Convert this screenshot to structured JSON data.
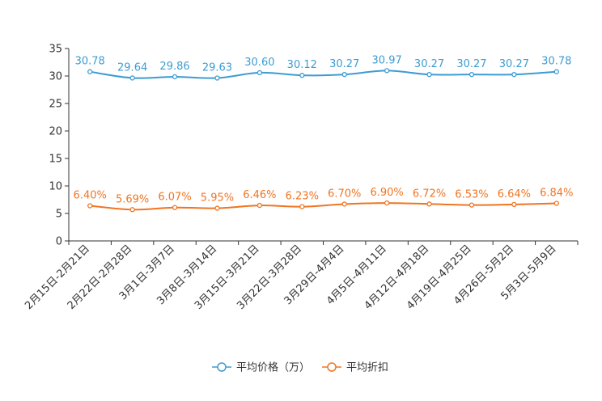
{
  "chart_data": {
    "type": "line",
    "categories": [
      "2月15日-2月21日",
      "2月22日-2月28日",
      "3月1日-3月7日",
      "3月8日-3月14日",
      "3月15日-3月21日",
      "3月22日-3月28日",
      "3月29日-4月4日",
      "4月5日-4月11日",
      "4月12日-4月18日",
      "4月19日-4月25日",
      "4月26日-5月2日",
      "5月3日-5月9日"
    ],
    "ylim": [
      0,
      35
    ],
    "yticks": [
      0,
      5,
      10,
      15,
      20,
      25,
      30,
      35
    ],
    "grid": false,
    "legend_position": "bottom-center",
    "series": [
      {
        "name": "平均价格（万）",
        "color": "#3d9cd2",
        "values": [
          30.78,
          29.64,
          29.86,
          29.63,
          30.6,
          30.12,
          30.27,
          30.97,
          30.27,
          30.27,
          30.27,
          30.78
        ],
        "labels": [
          "30.78",
          "29.64",
          "29.86",
          "29.63",
          "30.60",
          "30.12",
          "30.27",
          "30.97",
          "30.27",
          "30.27",
          "30.27",
          "30.78"
        ]
      },
      {
        "name": "平均折扣",
        "color": "#f07522",
        "values": [
          6.4,
          5.69,
          6.07,
          5.95,
          6.46,
          6.23,
          6.7,
          6.9,
          6.72,
          6.53,
          6.64,
          6.84
        ],
        "labels": [
          "6.40%",
          "5.69%",
          "6.07%",
          "5.95%",
          "6.46%",
          "6.23%",
          "6.70%",
          "6.90%",
          "6.72%",
          "6.53%",
          "6.64%",
          "6.84%"
        ]
      }
    ]
  }
}
